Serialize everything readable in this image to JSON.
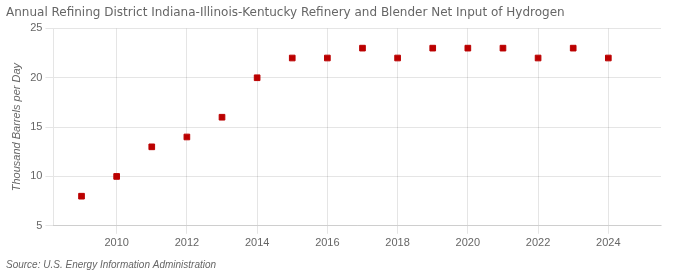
{
  "chart_data": {
    "type": "scatter",
    "title": "Annual Refining District Indiana-Illinois-Kentucky Refinery and Blender Net Input of Hydrogen",
    "ylabel": "Thousand Barrels per Day",
    "annotations": [
      "Source: U.S. Energy Information Administration"
    ],
    "x": [
      2009,
      2010,
      2011,
      2012,
      2013,
      2014,
      2015,
      2016,
      2017,
      2018,
      2019,
      2020,
      2021,
      2022,
      2023,
      2024
    ],
    "values": [
      8.0,
      10.0,
      13.0,
      14.0,
      16.0,
      20.0,
      22.0,
      22.0,
      23.0,
      22.0,
      23.0,
      23.0,
      23.0,
      22.0,
      23.0,
      22.0
    ],
    "xlim": [
      2008.2,
      2025.5
    ],
    "ylim": [
      5,
      25
    ],
    "xticks": [
      2010,
      2012,
      2014,
      2016,
      2018,
      2020,
      2022,
      2024
    ],
    "yticks": [
      5,
      10,
      15,
      20,
      25
    ],
    "grid": true,
    "color": "#bb0000",
    "marker": "square"
  }
}
